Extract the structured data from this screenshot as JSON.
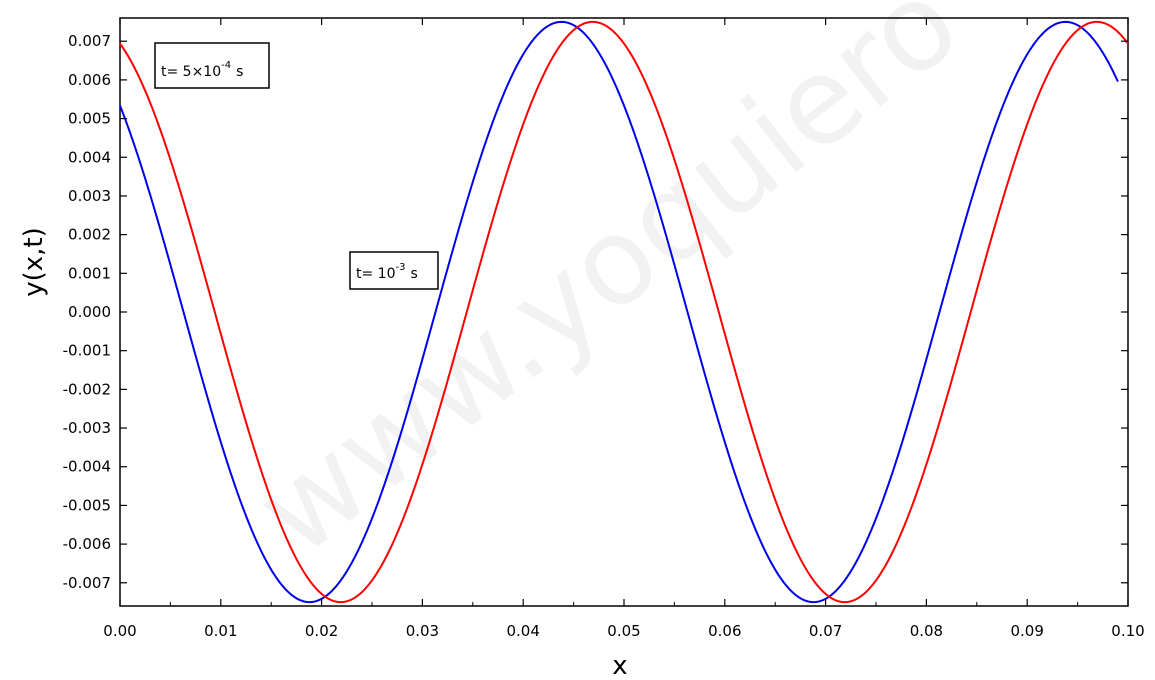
{
  "chart_data": {
    "type": "line",
    "title": "",
    "xlabel": "x",
    "ylabel": "y(x,t)",
    "xlim": [
      0.0,
      0.1
    ],
    "ylim": [
      -0.0076,
      0.0076
    ],
    "grid": false,
    "xticks": [
      "0.00",
      "0.01",
      "0.02",
      "0.03",
      "0.04",
      "0.05",
      "0.06",
      "0.07",
      "0.08",
      "0.09",
      "0.10"
    ],
    "yticks": [
      "-0.007",
      "-0.006",
      "-0.005",
      "-0.004",
      "-0.003",
      "-0.002",
      "-0.001",
      "0.000",
      "0.001",
      "0.002",
      "0.003",
      "0.004",
      "0.005",
      "0.006",
      "0.007"
    ],
    "series": [
      {
        "color": "#0000ee",
        "x": [
          0.0,
          0.005,
          0.01,
          0.015,
          0.0188,
          0.025,
          0.03,
          0.035,
          0.0438,
          0.05,
          0.055,
          0.06,
          0.065,
          0.0688,
          0.075,
          0.08,
          0.085,
          0.0938,
          0.099
        ],
        "y": [
          0.0053,
          0.0019,
          -0.0025,
          -0.0063,
          -0.0075,
          -0.0056,
          -0.0013,
          0.0035,
          0.0075,
          0.0051,
          0.0012,
          -0.0032,
          -0.0068,
          -0.0075,
          -0.0058,
          -0.0022,
          0.003,
          0.0075,
          0.006
        ]
      },
      {
        "color": "#ff0000",
        "x": [
          0.0,
          0.005,
          0.01,
          0.015,
          0.0219,
          0.025,
          0.03,
          0.035,
          0.04,
          0.0469,
          0.05,
          0.055,
          0.06,
          0.065,
          0.0719,
          0.075,
          0.08,
          0.085,
          0.09,
          0.0969,
          0.1
        ],
        "y": [
          0.0069,
          0.0039,
          -0.0008,
          -0.005,
          -0.0075,
          -0.0069,
          -0.0037,
          0.0012,
          0.0055,
          0.0075,
          0.0069,
          0.0036,
          -0.0011,
          -0.0054,
          -0.0075,
          -0.0069,
          -0.0039,
          0.0008,
          0.0052,
          0.0075,
          0.0072
        ]
      }
    ],
    "annotations": [
      {
        "prefix": "t= 5×10",
        "exponent": "-4",
        "suffix": "s"
      },
      {
        "prefix": "t= 10",
        "exponent": "-3",
        "suffix": "s"
      }
    ],
    "watermark": "www.yoquiero"
  }
}
